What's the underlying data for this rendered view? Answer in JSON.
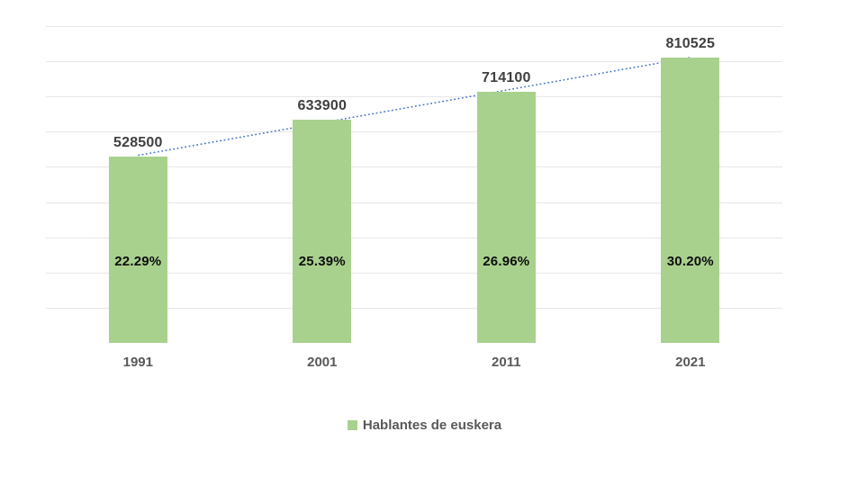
{
  "chart_data": {
    "type": "bar",
    "categories": [
      "1991",
      "2001",
      "2011",
      "2021"
    ],
    "series": [
      {
        "name": "Hablantes de euskera",
        "values": [
          528500,
          633900,
          714100,
          810525
        ],
        "color": "#a9d18e"
      }
    ],
    "value_labels": [
      "528500",
      "633900",
      "714100",
      "810525"
    ],
    "percent_labels": [
      "22.29%",
      "25.39%",
      "26.96%",
      "30.20%"
    ],
    "title": "",
    "xlabel": "",
    "ylabel": "",
    "ylim": [
      0,
      900000
    ],
    "grid": true,
    "gridline_step": 100000,
    "y_axis_labels_visible": false,
    "legend_position": "bottom",
    "trendline": {
      "type": "linear",
      "style": "dotted",
      "color": "#4472c4"
    }
  },
  "legend": {
    "label": "Hablantes de euskera",
    "swatch": "green-square"
  },
  "colors": {
    "bar": "#a9d18e",
    "value_label": "#404040",
    "percent_label": "#0d0d0d",
    "axis_label": "#595959",
    "legend_text": "#595959",
    "gridline": "#e7e7e7",
    "trendline": "#4472c4",
    "background": "#ffffff"
  }
}
